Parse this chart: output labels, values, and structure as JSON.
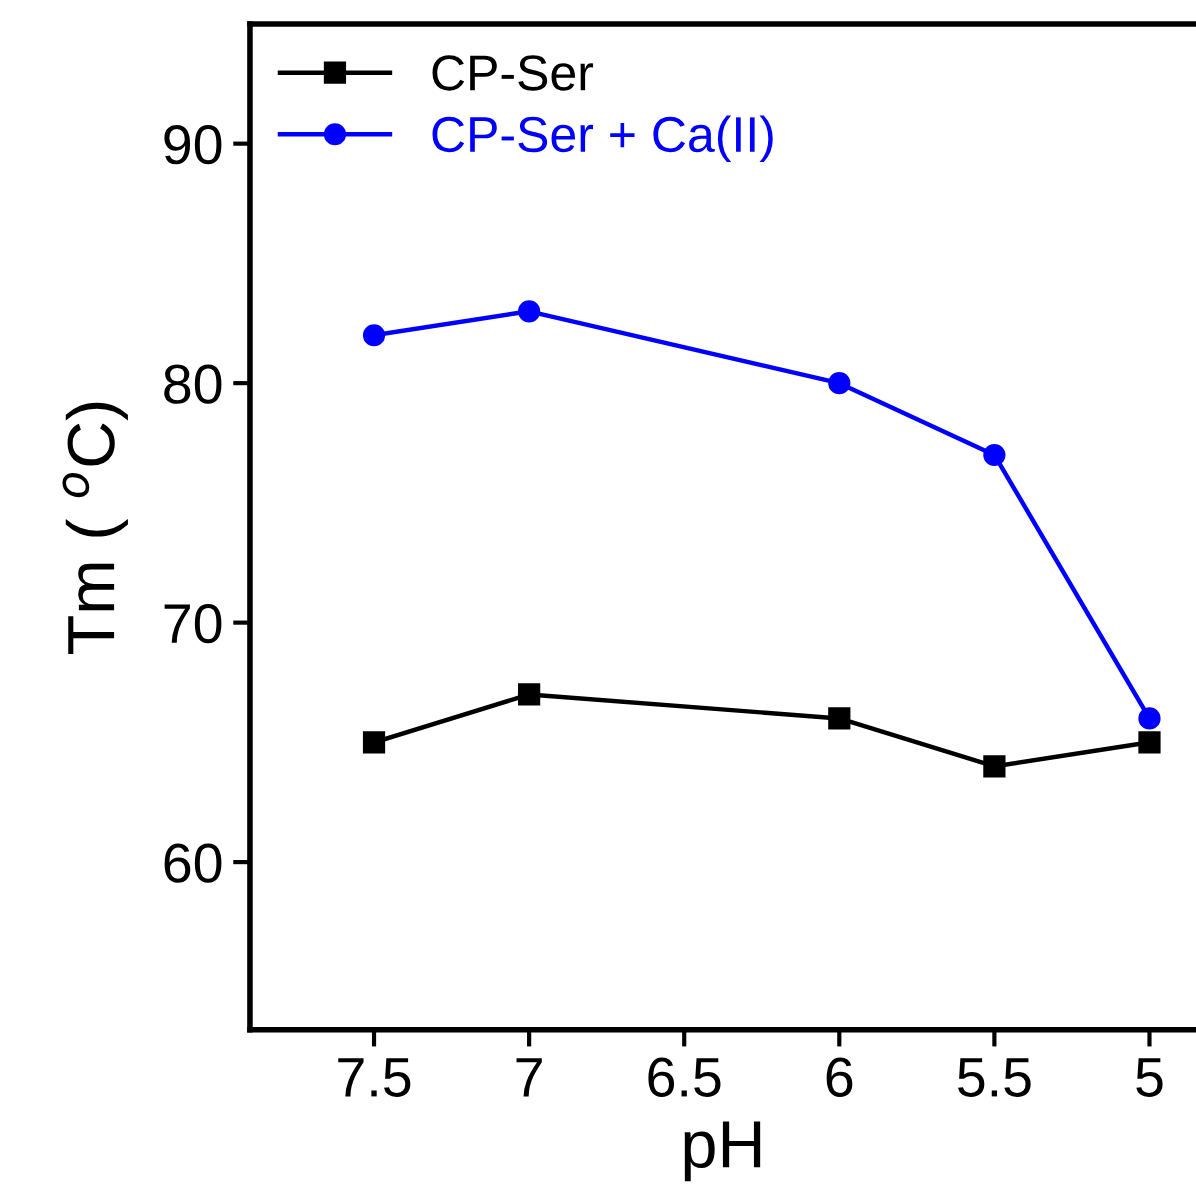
{
  "chart_data": {
    "type": "line",
    "xlabel": "pH",
    "ylabel": "Tm ( $^{o}$C)",
    "x": [
      7.5,
      7,
      6,
      5.5,
      5
    ],
    "series": [
      {
        "name": "CP-Ser",
        "color": "#000000",
        "values": [
          65,
          67,
          66,
          64,
          65
        ],
        "marker": "square"
      },
      {
        "name": "CP-Ser + Ca(II)",
        "color": "#0000ff",
        "values": [
          82,
          83,
          80,
          77,
          66
        ],
        "marker": "circle"
      }
    ],
    "xlim": [
      7.9,
      4.85
    ],
    "xticks": [
      7.5,
      7,
      6.5,
      6,
      5.5,
      5
    ],
    "ylim": [
      53,
      95
    ],
    "yticks": [
      60,
      70,
      80,
      90
    ],
    "grid": false,
    "legend": "top left",
    "line_style": "solid"
  }
}
